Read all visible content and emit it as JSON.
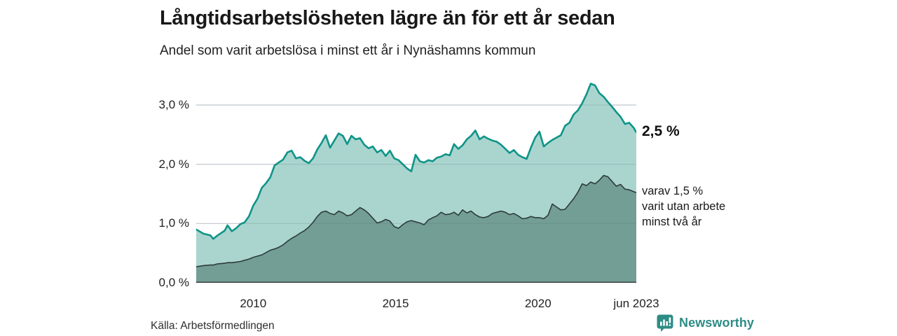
{
  "header": {
    "title": "Långtidsarbetslösheten lägre än för ett år sedan",
    "subtitle": "Andel som varit arbetslösa i minst ett år i Nynäshamns kommun"
  },
  "annotations": {
    "end_label_total": "2,5 %",
    "end_label_sub_lines": [
      "varav 1,5 %",
      "varit utan arbete",
      "minst två år"
    ]
  },
  "footer": {
    "source": "Källa: Arbetsförmedlingen",
    "brand_name": "Newsworthy",
    "brand_color": "#2d8c85"
  },
  "colors": {
    "grid": "#d7dadf",
    "grid_over_fill": "rgba(90,100,110,0.16)",
    "axis_line": "#37433f",
    "tick_text": "#222222"
  },
  "chart_data": {
    "type": "area",
    "title": "Långtidsarbetslösheten lägre än för ett år sedan",
    "subtitle": "Andel som varit arbetslösa i minst ett år i Nynäshamns kommun",
    "xlabel": "",
    "ylabel": "",
    "xlim": [
      2008.0,
      2023.45
    ],
    "ylim": [
      0,
      3.472
    ],
    "grid": "horizontal",
    "legend_position": "none",
    "x": [
      2008.0,
      2008.25,
      2008.5,
      2008.6,
      2008.75,
      2009.0,
      2009.1,
      2009.25,
      2009.4,
      2009.55,
      2009.7,
      2009.85,
      2010.0,
      2010.15,
      2010.3,
      2010.45,
      2010.6,
      2010.75,
      2010.9,
      2011.05,
      2011.2,
      2011.35,
      2011.5,
      2011.65,
      2011.8,
      2011.95,
      2012.1,
      2012.25,
      2012.4,
      2012.55,
      2012.7,
      2012.85,
      2013.0,
      2013.15,
      2013.3,
      2013.45,
      2013.6,
      2013.75,
      2013.9,
      2014.05,
      2014.2,
      2014.35,
      2014.5,
      2014.65,
      2014.8,
      2014.95,
      2015.1,
      2015.25,
      2015.4,
      2015.55,
      2015.7,
      2015.85,
      2016.0,
      2016.15,
      2016.3,
      2016.45,
      2016.6,
      2016.75,
      2016.9,
      2017.05,
      2017.2,
      2017.35,
      2017.5,
      2017.65,
      2017.8,
      2017.95,
      2018.1,
      2018.25,
      2018.4,
      2018.55,
      2018.7,
      2018.85,
      2019.0,
      2019.15,
      2019.3,
      2019.45,
      2019.6,
      2019.75,
      2019.9,
      2020.05,
      2020.2,
      2020.35,
      2020.5,
      2020.65,
      2020.8,
      2020.95,
      2021.1,
      2021.25,
      2021.4,
      2021.55,
      2021.7,
      2021.85,
      2022.0,
      2022.15,
      2022.3,
      2022.45,
      2022.6,
      2022.75,
      2022.9,
      2023.05,
      2023.2,
      2023.35,
      2023.45
    ],
    "series": [
      {
        "name": "arbetslösa minst ett år",
        "end_value_label": "2,5 %",
        "line_color": "#0f9488",
        "fill_color": "#9ecfc8",
        "fill_opacity": 0.88,
        "line_width": 2.6,
        "values": [
          0.9,
          0.83,
          0.8,
          0.74,
          0.8,
          0.88,
          0.97,
          0.87,
          0.92,
          0.99,
          1.02,
          1.12,
          1.3,
          1.42,
          1.6,
          1.68,
          1.78,
          1.98,
          2.03,
          2.08,
          2.2,
          2.23,
          2.1,
          2.12,
          2.06,
          2.02,
          2.1,
          2.25,
          2.36,
          2.49,
          2.28,
          2.4,
          2.52,
          2.48,
          2.34,
          2.48,
          2.42,
          2.44,
          2.33,
          2.27,
          2.3,
          2.2,
          2.24,
          2.14,
          2.23,
          2.1,
          2.07,
          2.0,
          1.93,
          1.88,
          2.16,
          2.05,
          2.03,
          2.07,
          2.05,
          2.11,
          2.13,
          2.17,
          2.15,
          2.34,
          2.26,
          2.32,
          2.42,
          2.48,
          2.57,
          2.42,
          2.47,
          2.43,
          2.4,
          2.38,
          2.33,
          2.26,
          2.19,
          2.24,
          2.16,
          2.12,
          2.09,
          2.28,
          2.45,
          2.55,
          2.3,
          2.36,
          2.41,
          2.45,
          2.49,
          2.65,
          2.7,
          2.84,
          2.91,
          3.03,
          3.18,
          3.36,
          3.33,
          3.2,
          3.14,
          3.05,
          2.97,
          2.88,
          2.8,
          2.68,
          2.7,
          2.62,
          2.54
        ]
      },
      {
        "name": "varav varit utan arbete minst två år",
        "end_value_label": "1,5 %",
        "line_color": "#2e3c39",
        "fill_color": "#6f9b94",
        "fill_opacity": 0.96,
        "line_width": 1.6,
        "values": [
          0.27,
          0.29,
          0.3,
          0.3,
          0.32,
          0.33,
          0.34,
          0.34,
          0.35,
          0.36,
          0.38,
          0.4,
          0.43,
          0.45,
          0.47,
          0.51,
          0.55,
          0.57,
          0.6,
          0.64,
          0.7,
          0.75,
          0.79,
          0.84,
          0.88,
          0.94,
          1.02,
          1.12,
          1.19,
          1.21,
          1.17,
          1.15,
          1.21,
          1.18,
          1.13,
          1.15,
          1.21,
          1.27,
          1.23,
          1.17,
          1.09,
          1.01,
          1.03,
          1.07,
          1.04,
          0.95,
          0.92,
          0.98,
          1.03,
          1.05,
          1.03,
          1.01,
          0.98,
          1.06,
          1.1,
          1.13,
          1.19,
          1.15,
          1.16,
          1.19,
          1.14,
          1.23,
          1.18,
          1.21,
          1.15,
          1.11,
          1.1,
          1.12,
          1.17,
          1.19,
          1.21,
          1.19,
          1.15,
          1.17,
          1.13,
          1.08,
          1.09,
          1.12,
          1.1,
          1.1,
          1.08,
          1.14,
          1.33,
          1.28,
          1.23,
          1.24,
          1.33,
          1.42,
          1.53,
          1.67,
          1.64,
          1.7,
          1.67,
          1.73,
          1.81,
          1.79,
          1.71,
          1.63,
          1.66,
          1.58,
          1.57,
          1.54,
          1.52
        ]
      }
    ],
    "yticks": [
      {
        "value": 0,
        "label": "0,0 %"
      },
      {
        "value": 1,
        "label": "1,0 %"
      },
      {
        "value": 2,
        "label": "2,0 %"
      },
      {
        "value": 3,
        "label": "3,0 %"
      }
    ],
    "xticks": [
      {
        "value": 2010,
        "label": "2010"
      },
      {
        "value": 2015,
        "label": "2015"
      },
      {
        "value": 2020,
        "label": "2020"
      },
      {
        "value": 2023.45,
        "label": "jun 2023"
      }
    ]
  }
}
